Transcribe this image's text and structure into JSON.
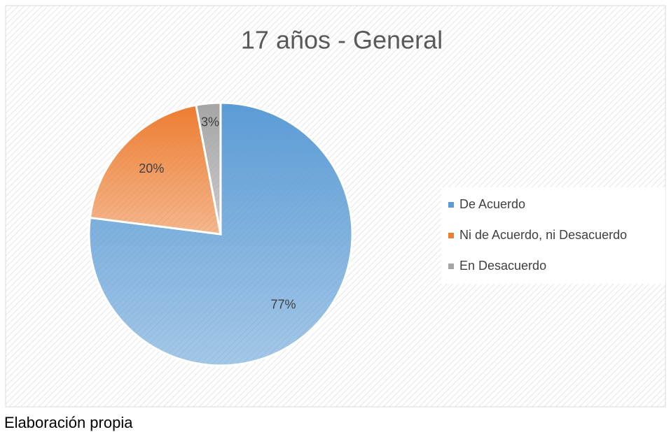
{
  "chart_data": {
    "type": "pie",
    "title": "17 años - General",
    "categories": [
      "De Acuerdo",
      "Ni de Acuerdo, ni Desacuerdo",
      "En Desacuerdo"
    ],
    "values": [
      77,
      20,
      3
    ],
    "value_labels": [
      "77%",
      "20%",
      "3%"
    ],
    "colors": [
      "#5b9bd5",
      "#ed7d31",
      "#a5a5a5"
    ],
    "legend": "right"
  },
  "caption": "Elaboración propia"
}
